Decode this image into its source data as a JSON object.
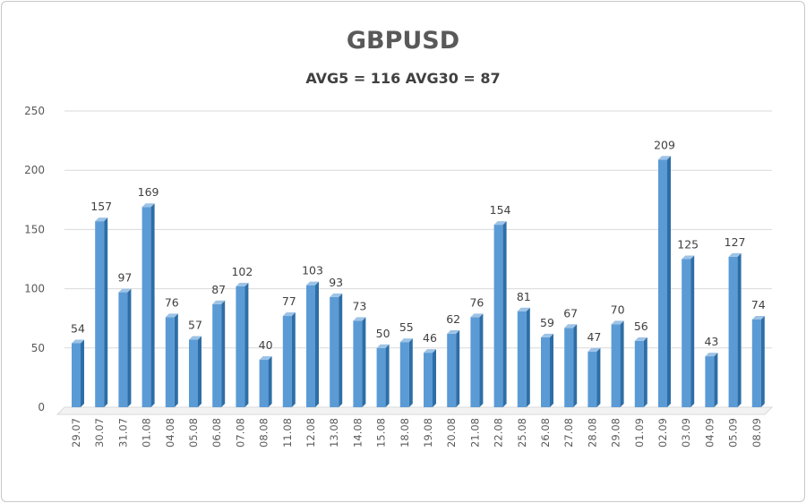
{
  "chart_data": {
    "type": "bar",
    "title": "GBPUSD",
    "subtitle": "AVG5 = 116 AVG30 = 87",
    "xlabel": "",
    "ylabel": "",
    "ylim": [
      0,
      250
    ],
    "yticks": [
      0,
      50,
      100,
      150,
      200,
      250
    ],
    "grid": true,
    "categories": [
      "29.07",
      "30.07",
      "31.07",
      "01.08",
      "04.08",
      "05.08",
      "06.08",
      "07.08",
      "08.08",
      "11.08",
      "12.08",
      "13.08",
      "14.08",
      "15.08",
      "18.08",
      "19.08",
      "20.08",
      "21.08",
      "22.08",
      "25.08",
      "26.08",
      "27.08",
      "28.08",
      "29.08",
      "01.09",
      "02.09",
      "03.09",
      "04.09",
      "05.09",
      "08.09"
    ],
    "values": [
      54,
      157,
      97,
      169,
      76,
      57,
      87,
      102,
      40,
      77,
      103,
      93,
      73,
      50,
      55,
      46,
      62,
      76,
      154,
      81,
      59,
      67,
      47,
      70,
      56,
      209,
      125,
      43,
      127,
      74
    ],
    "bar_color": "#5b9bd5",
    "bar_side_color": "#2e6ea6"
  }
}
